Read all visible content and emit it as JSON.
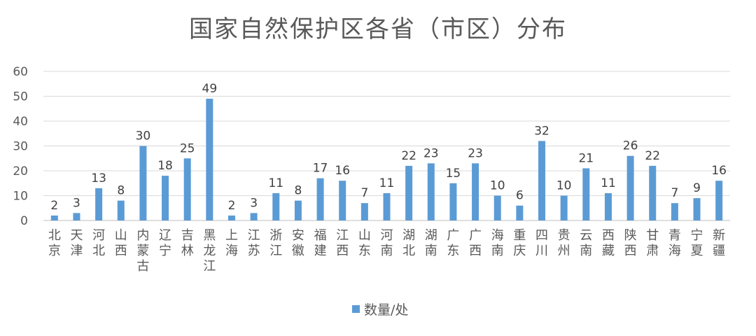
{
  "chart_data": {
    "type": "bar",
    "title": "国家自然保护区各省（市区）分布",
    "categories": [
      "北京",
      "天津",
      "河北",
      "山西",
      "内蒙古",
      "辽宁",
      "吉林",
      "黑龙江",
      "上海",
      "江苏",
      "浙江",
      "安徽",
      "福建",
      "江西",
      "山东",
      "河南",
      "湖北",
      "湖南",
      "广东",
      "广西",
      "海南",
      "重庆",
      "四川",
      "贵州",
      "云南",
      "西藏",
      "陕西",
      "甘肃",
      "青海",
      "宁夏",
      "新疆"
    ],
    "series": [
      {
        "name": "数量/处",
        "values": [
          2,
          3,
          13,
          8,
          30,
          18,
          25,
          49,
          2,
          3,
          11,
          8,
          17,
          16,
          7,
          11,
          22,
          23,
          15,
          23,
          10,
          6,
          32,
          10,
          21,
          11,
          26,
          22,
          7,
          9,
          16
        ]
      }
    ],
    "ylim": [
      0,
      60
    ],
    "yticks": [
      0,
      10,
      20,
      30,
      40,
      50,
      60
    ],
    "grid": true,
    "legend_position": "bottom",
    "bar_color": "#5b9bd5"
  }
}
